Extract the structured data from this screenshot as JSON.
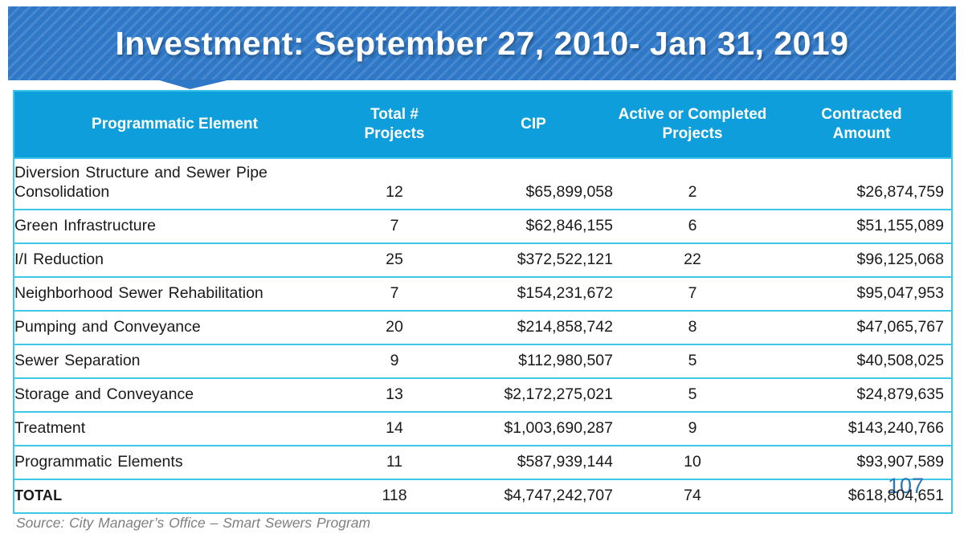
{
  "slide": {
    "title": "Investment: September 27, 2010- Jan 31, 2019",
    "page_number": "107",
    "source": "Source: City Manager’s Office – Smart Sewers Program"
  },
  "colors": {
    "banner_blue": "#2e78c7",
    "header_cyan": "#0d9edb",
    "row_border_cyan": "#3dc6e8",
    "page_number_blue": "#2e75b6",
    "source_gray": "#7f7f7f",
    "title_text": "#ffffff"
  },
  "table": {
    "columns": [
      "Programmatic Element",
      "Total #\nProjects",
      "CIP",
      "Active or Completed\nProjects",
      "Contracted\nAmount"
    ],
    "rows": [
      {
        "element": "Diversion Structure and Sewer Pipe Consolidation",
        "total_projects": "12",
        "cip": "$65,899,058",
        "active_completed": "2",
        "contracted": "$26,874,759"
      },
      {
        "element": "Green Infrastructure",
        "total_projects": "7",
        "cip": "$62,846,155",
        "active_completed": "6",
        "contracted": "$51,155,089"
      },
      {
        "element": "I/I Reduction",
        "total_projects": "25",
        "cip": "$372,522,121",
        "active_completed": "22",
        "contracted": "$96,125,068"
      },
      {
        "element": "Neighborhood Sewer Rehabilitation",
        "total_projects": "7",
        "cip": "$154,231,672",
        "active_completed": "7",
        "contracted": "$95,047,953"
      },
      {
        "element": "Pumping and Conveyance",
        "total_projects": "20",
        "cip": "$214,858,742",
        "active_completed": "8",
        "contracted": "$47,065,767"
      },
      {
        "element": "Sewer Separation",
        "total_projects": "9",
        "cip": "$112,980,507",
        "active_completed": "5",
        "contracted": "$40,508,025"
      },
      {
        "element": "Storage and Conveyance",
        "total_projects": "13",
        "cip": "$2,172,275,021",
        "active_completed": "5",
        "contracted": "$24,879,635"
      },
      {
        "element": "Treatment",
        "total_projects": "14",
        "cip": "$1,003,690,287",
        "active_completed": "9",
        "contracted": "$143,240,766"
      },
      {
        "element": "Programmatic Elements",
        "total_projects": "11",
        "cip": "$587,939,144",
        "active_completed": "10",
        "contracted": "$93,907,589"
      }
    ],
    "total_row": {
      "element": "TOTAL",
      "total_projects": "118",
      "cip": "$4,747,242,707",
      "active_completed": "74",
      "contracted": "$618,804,651"
    }
  }
}
